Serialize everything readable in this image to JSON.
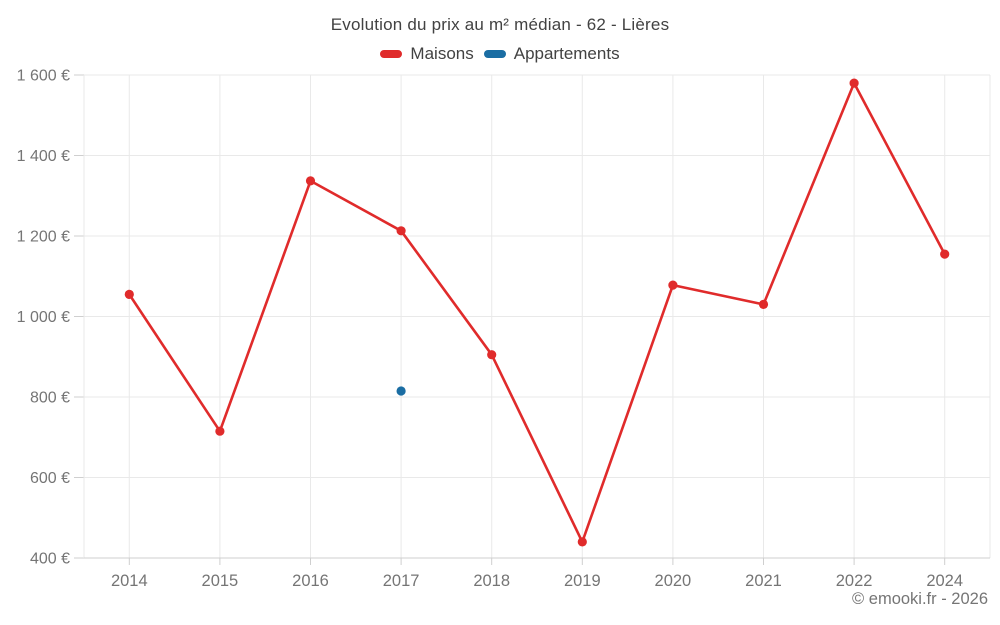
{
  "header": {
    "title": "Evolution du prix au m² médian - 62 - Lières"
  },
  "footer": {
    "credit": "© emooki.fr - 2026"
  },
  "colors": {
    "maisons": "#e02b2b",
    "appartements": "#1a6da3",
    "grid": "#e9e9e9",
    "axis": "#cfcfcf",
    "title_text": "#424242",
    "axis_text": "#757575",
    "background": "#ffffff"
  },
  "chart_data": {
    "type": "line",
    "title": "Evolution du prix au m² médian - 62 - Lières",
    "categories": [
      "2014",
      "2015",
      "2016",
      "2017",
      "2018",
      "2019",
      "2020",
      "2021",
      "2022",
      "2024"
    ],
    "series": [
      {
        "name": "Maisons",
        "color": "#e02b2b",
        "style": "line-with-markers",
        "values": [
          1055,
          715,
          1337,
          1213,
          905,
          440,
          1078,
          1030,
          1580,
          1155
        ]
      },
      {
        "name": "Appartements",
        "color": "#1a6da3",
        "style": "markers-only",
        "values": [
          null,
          null,
          null,
          815,
          null,
          null,
          null,
          null,
          null,
          null
        ]
      }
    ],
    "xlabel": "",
    "ylabel": "",
    "ylim": [
      400,
      1600
    ],
    "ytick_values": [
      400,
      600,
      800,
      1000,
      1200,
      1400,
      1600
    ],
    "ytick_labels": [
      "400 €",
      "600 €",
      "800 €",
      "1 000 €",
      "1 200 €",
      "1 400 €",
      "1 600 €"
    ],
    "grid": true,
    "legend_position": "top"
  }
}
